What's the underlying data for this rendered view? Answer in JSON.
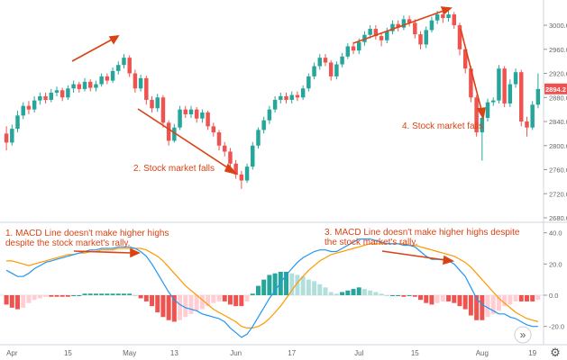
{
  "colors": {
    "up": "#26a69a",
    "down": "#ef5350",
    "hist_up_strong": "#26a69a",
    "hist_up_weak": "#b2dfdb",
    "hist_down_strong": "#ef5350",
    "hist_down_weak": "#ffcdd2",
    "macd_line": "#2196f3",
    "signal_line": "#ff9800",
    "annotation": "#d84315",
    "axis_text": "#666666",
    "price_badge": "#ef5350"
  },
  "chart_data": [
    {
      "type": "candlestick",
      "title": "",
      "ylim": [
        2680,
        3030
      ],
      "yticks": [
        "3000.0",
        "2960.0",
        "2920.0",
        "2880.0",
        "2840.0",
        "2800.0",
        "2760.0",
        "2720.0",
        "2680.0"
      ],
      "last_price_label": "2894.2",
      "x_labels": [
        "Apr",
        "15",
        "May",
        "13",
        "Jun",
        "17",
        "Jul",
        "15",
        "Aug",
        "19"
      ],
      "grid": false,
      "candles": [
        {
          "o": 2820,
          "c": 2805,
          "h": 2832,
          "l": 2792
        },
        {
          "o": 2805,
          "c": 2828,
          "h": 2835,
          "l": 2800
        },
        {
          "o": 2828,
          "c": 2850,
          "h": 2858,
          "l": 2822
        },
        {
          "o": 2850,
          "c": 2866,
          "h": 2872,
          "l": 2844
        },
        {
          "o": 2866,
          "c": 2860,
          "h": 2874,
          "l": 2852
        },
        {
          "o": 2860,
          "c": 2875,
          "h": 2882,
          "l": 2855
        },
        {
          "o": 2875,
          "c": 2882,
          "h": 2888,
          "l": 2868
        },
        {
          "o": 2882,
          "c": 2876,
          "h": 2888,
          "l": 2870
        },
        {
          "o": 2876,
          "c": 2888,
          "h": 2894,
          "l": 2872
        },
        {
          "o": 2888,
          "c": 2892,
          "h": 2898,
          "l": 2882
        },
        {
          "o": 2892,
          "c": 2880,
          "h": 2896,
          "l": 2874
        },
        {
          "o": 2880,
          "c": 2895,
          "h": 2900,
          "l": 2876
        },
        {
          "o": 2895,
          "c": 2902,
          "h": 2908,
          "l": 2888
        },
        {
          "o": 2902,
          "c": 2894,
          "h": 2906,
          "l": 2888
        },
        {
          "o": 2894,
          "c": 2906,
          "h": 2912,
          "l": 2890
        },
        {
          "o": 2906,
          "c": 2896,
          "h": 2910,
          "l": 2890
        },
        {
          "o": 2896,
          "c": 2902,
          "h": 2908,
          "l": 2890
        },
        {
          "o": 2902,
          "c": 2915,
          "h": 2920,
          "l": 2898
        },
        {
          "o": 2915,
          "c": 2908,
          "h": 2920,
          "l": 2902
        },
        {
          "o": 2908,
          "c": 2924,
          "h": 2930,
          "l": 2904
        },
        {
          "o": 2924,
          "c": 2934,
          "h": 2940,
          "l": 2918
        },
        {
          "o": 2934,
          "c": 2946,
          "h": 2952,
          "l": 2928
        },
        {
          "o": 2946,
          "c": 2920,
          "h": 2950,
          "l": 2914
        },
        {
          "o": 2920,
          "c": 2895,
          "h": 2926,
          "l": 2888
        },
        {
          "o": 2895,
          "c": 2912,
          "h": 2918,
          "l": 2890
        },
        {
          "o": 2912,
          "c": 2876,
          "h": 2916,
          "l": 2868
        },
        {
          "o": 2876,
          "c": 2862,
          "h": 2882,
          "l": 2855
        },
        {
          "o": 2862,
          "c": 2880,
          "h": 2886,
          "l": 2856
        },
        {
          "o": 2880,
          "c": 2838,
          "h": 2884,
          "l": 2830
        },
        {
          "o": 2838,
          "c": 2808,
          "h": 2842,
          "l": 2800
        },
        {
          "o": 2808,
          "c": 2830,
          "h": 2836,
          "l": 2805
        },
        {
          "o": 2830,
          "c": 2860,
          "h": 2866,
          "l": 2826
        },
        {
          "o": 2860,
          "c": 2852,
          "h": 2866,
          "l": 2846
        },
        {
          "o": 2852,
          "c": 2860,
          "h": 2866,
          "l": 2846
        },
        {
          "o": 2860,
          "c": 2845,
          "h": 2864,
          "l": 2838
        },
        {
          "o": 2845,
          "c": 2855,
          "h": 2860,
          "l": 2838
        },
        {
          "o": 2855,
          "c": 2832,
          "h": 2858,
          "l": 2826
        },
        {
          "o": 2832,
          "c": 2822,
          "h": 2838,
          "l": 2815
        },
        {
          "o": 2822,
          "c": 2800,
          "h": 2826,
          "l": 2792
        },
        {
          "o": 2800,
          "c": 2790,
          "h": 2806,
          "l": 2782
        },
        {
          "o": 2790,
          "c": 2770,
          "h": 2796,
          "l": 2762
        },
        {
          "o": 2770,
          "c": 2752,
          "h": 2776,
          "l": 2745
        },
        {
          "o": 2752,
          "c": 2742,
          "h": 2758,
          "l": 2728
        },
        {
          "o": 2742,
          "c": 2765,
          "h": 2770,
          "l": 2738
        },
        {
          "o": 2765,
          "c": 2800,
          "h": 2806,
          "l": 2760
        },
        {
          "o": 2800,
          "c": 2826,
          "h": 2830,
          "l": 2795
        },
        {
          "o": 2826,
          "c": 2842,
          "h": 2848,
          "l": 2820
        },
        {
          "o": 2842,
          "c": 2860,
          "h": 2866,
          "l": 2836
        },
        {
          "o": 2860,
          "c": 2876,
          "h": 2882,
          "l": 2855
        },
        {
          "o": 2876,
          "c": 2882,
          "h": 2888,
          "l": 2870
        },
        {
          "o": 2882,
          "c": 2876,
          "h": 2888,
          "l": 2870
        },
        {
          "o": 2876,
          "c": 2884,
          "h": 2890,
          "l": 2870
        },
        {
          "o": 2884,
          "c": 2880,
          "h": 2890,
          "l": 2874
        },
        {
          "o": 2880,
          "c": 2895,
          "h": 2900,
          "l": 2876
        },
        {
          "o": 2895,
          "c": 2915,
          "h": 2920,
          "l": 2890
        },
        {
          "o": 2915,
          "c": 2932,
          "h": 2938,
          "l": 2910
        },
        {
          "o": 2932,
          "c": 2946,
          "h": 2952,
          "l": 2926
        },
        {
          "o": 2946,
          "c": 2938,
          "h": 2952,
          "l": 2932
        },
        {
          "o": 2938,
          "c": 2915,
          "h": 2942,
          "l": 2908
        },
        {
          "o": 2915,
          "c": 2935,
          "h": 2940,
          "l": 2910
        },
        {
          "o": 2935,
          "c": 2948,
          "h": 2954,
          "l": 2930
        },
        {
          "o": 2948,
          "c": 2965,
          "h": 2970,
          "l": 2944
        },
        {
          "o": 2965,
          "c": 2958,
          "h": 2972,
          "l": 2952
        },
        {
          "o": 2958,
          "c": 2972,
          "h": 2978,
          "l": 2952
        },
        {
          "o": 2972,
          "c": 2984,
          "h": 2990,
          "l": 2966
        },
        {
          "o": 2984,
          "c": 2994,
          "h": 3000,
          "l": 2978
        },
        {
          "o": 2994,
          "c": 2982,
          "h": 3000,
          "l": 2976
        },
        {
          "o": 2982,
          "c": 2975,
          "h": 2988,
          "l": 2965
        },
        {
          "o": 2975,
          "c": 2990,
          "h": 2996,
          "l": 2970
        },
        {
          "o": 2990,
          "c": 3002,
          "h": 3008,
          "l": 2985
        },
        {
          "o": 3002,
          "c": 2996,
          "h": 3008,
          "l": 2990
        },
        {
          "o": 2996,
          "c": 3010,
          "h": 3016,
          "l": 2992
        },
        {
          "o": 3010,
          "c": 3004,
          "h": 3016,
          "l": 2998
        },
        {
          "o": 3004,
          "c": 2985,
          "h": 3010,
          "l": 2978
        },
        {
          "o": 2985,
          "c": 2968,
          "h": 2990,
          "l": 2960
        },
        {
          "o": 2968,
          "c": 2992,
          "h": 2998,
          "l": 2962
        },
        {
          "o": 2992,
          "c": 3008,
          "h": 3014,
          "l": 2988
        },
        {
          "o": 3008,
          "c": 3018,
          "h": 3024,
          "l": 3002
        },
        {
          "o": 3018,
          "c": 3012,
          "h": 3022,
          "l": 3004
        },
        {
          "o": 3012,
          "c": 3018,
          "h": 3024,
          "l": 3006
        },
        {
          "o": 3018,
          "c": 3000,
          "h": 3022,
          "l": 2994
        },
        {
          "o": 3000,
          "c": 2960,
          "h": 3004,
          "l": 2950
        },
        {
          "o": 2960,
          "c": 2928,
          "h": 2964,
          "l": 2920
        },
        {
          "o": 2928,
          "c": 2880,
          "h": 2932,
          "l": 2872
        },
        {
          "o": 2880,
          "c": 2822,
          "h": 2884,
          "l": 2815
        },
        {
          "o": 2822,
          "c": 2846,
          "h": 2850,
          "l": 2775
        },
        {
          "o": 2846,
          "c": 2872,
          "h": 2878,
          "l": 2840
        },
        {
          "o": 2872,
          "c": 2875,
          "h": 2880,
          "l": 2866
        },
        {
          "o": 2875,
          "c": 2928,
          "h": 2934,
          "l": 2870
        },
        {
          "o": 2928,
          "c": 2870,
          "h": 2932,
          "l": 2864
        },
        {
          "o": 2870,
          "c": 2902,
          "h": 2910,
          "l": 2864
        },
        {
          "o": 2902,
          "c": 2922,
          "h": 2928,
          "l": 2896
        },
        {
          "o": 2922,
          "c": 2840,
          "h": 2926,
          "l": 2832
        },
        {
          "o": 2840,
          "c": 2830,
          "h": 2848,
          "l": 2815
        },
        {
          "o": 2830,
          "c": 2868,
          "h": 2874,
          "l": 2826
        },
        {
          "o": 2868,
          "c": 2894,
          "h": 2920,
          "l": 2862
        }
      ]
    },
    {
      "type": "macd",
      "ylim": [
        -30,
        45
      ],
      "yticks": [
        "40.0",
        "20.0",
        "0.0",
        "-20.0"
      ],
      "macd": [
        16,
        14,
        12,
        12,
        14,
        17,
        19,
        21,
        22,
        23,
        24,
        25,
        26,
        27,
        28,
        29,
        29,
        30,
        30,
        30,
        31,
        31,
        31,
        30,
        28,
        25,
        20,
        14,
        8,
        2,
        -3,
        -6,
        -8,
        -9,
        -10,
        -12,
        -13,
        -14,
        -15,
        -17,
        -21,
        -24,
        -27,
        -25,
        -20,
        -14,
        -8,
        -2,
        3,
        8,
        13,
        17,
        21,
        24,
        26,
        28,
        29,
        29,
        28,
        28,
        30,
        32,
        34,
        36,
        36,
        36,
        35,
        34,
        33,
        33,
        33,
        32,
        32,
        31,
        28,
        25,
        23,
        23,
        23,
        22,
        20,
        16,
        12,
        5,
        -2,
        -6,
        -8,
        -10,
        -12,
        -12,
        -14,
        -15,
        -17,
        -19,
        -20,
        -20
      ],
      "signal": [
        22,
        22,
        21,
        20,
        19,
        20,
        21,
        22,
        23,
        24,
        25,
        26,
        26,
        27,
        27,
        28,
        28,
        29,
        29,
        29,
        30,
        30,
        30,
        30,
        30,
        29,
        27,
        25,
        22,
        18,
        14,
        10,
        6,
        3,
        0,
        -3,
        -6,
        -9,
        -11,
        -13,
        -15,
        -17,
        -20,
        -21,
        -21,
        -20,
        -18,
        -15,
        -11,
        -7,
        -2,
        3,
        8,
        12,
        16,
        19,
        22,
        24,
        26,
        27,
        28,
        29,
        30,
        31,
        32,
        33,
        33,
        33,
        33,
        33,
        33,
        33,
        32,
        32,
        31,
        30,
        29,
        28,
        27,
        26,
        25,
        23,
        21,
        18,
        14,
        10,
        6,
        2,
        -2,
        -5,
        -8,
        -11,
        -13,
        -15,
        -16,
        -17
      ],
      "histogram": [
        -6,
        -8,
        -9,
        -8,
        -5,
        -3,
        -2,
        -1,
        -1,
        -1,
        -1,
        -1,
        0,
        0,
        1,
        1,
        1,
        1,
        1,
        1,
        1,
        1,
        1,
        0,
        -2,
        -4,
        -7,
        -11,
        -14,
        -16,
        -17,
        -16,
        -14,
        -12,
        -10,
        -9,
        -7,
        -5,
        -4,
        -4,
        -6,
        -7,
        -7,
        -4,
        1,
        6,
        10,
        13,
        14,
        15,
        15,
        14,
        13,
        12,
        10,
        9,
        7,
        5,
        2,
        1,
        2,
        3,
        4,
        5,
        4,
        3,
        2,
        1,
        0,
        0,
        0,
        -1,
        0,
        -1,
        -3,
        -5,
        -6,
        -5,
        -4,
        -4,
        -5,
        -7,
        -9,
        -13,
        -16,
        -16,
        -14,
        -12,
        -10,
        -7,
        -6,
        -4,
        -4,
        -4,
        -4,
        -3
      ]
    }
  ],
  "annotations": {
    "note1_line1": "1. MACD Line doesn't make higher highs",
    "note1_line2": "despite the stock market's rally.",
    "note2": "2. Stock market falls",
    "note3_line1": "3. MACD Line doesn't make higher highs despite",
    "note3_line2": "the stock market's rally.",
    "note4": "4. Stock market falls"
  },
  "controls": {
    "scroll_right_glyph": "»",
    "settings_glyph": "⚙"
  },
  "icons": {
    "scroll": "double-chevron-right-icon",
    "settings": "gear-icon"
  }
}
